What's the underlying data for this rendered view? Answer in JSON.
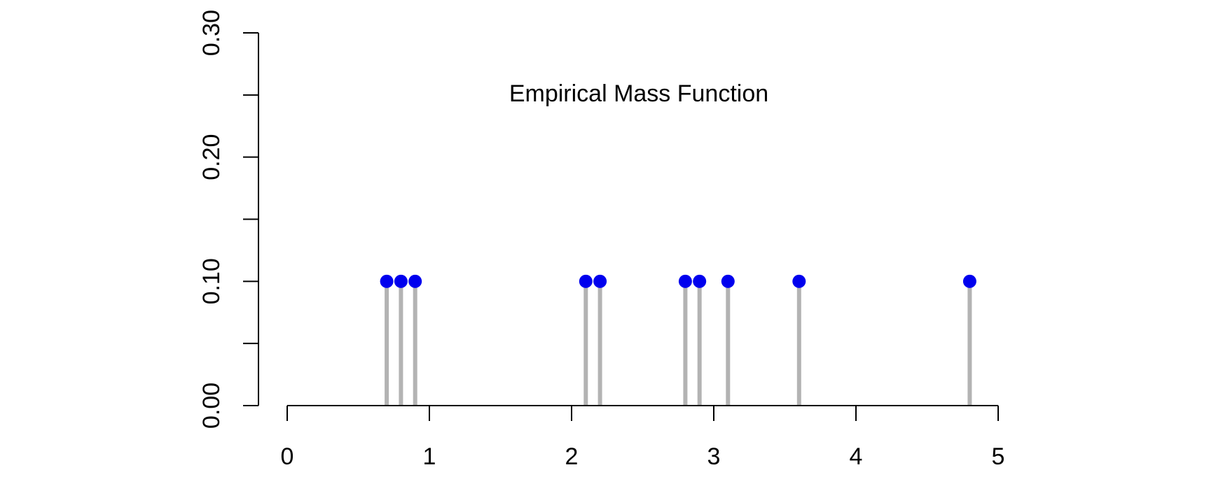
{
  "chart_data": {
    "type": "scatter",
    "title": "Empirical Mass Function",
    "xlabel": "",
    "ylabel": "",
    "xlim": [
      0,
      5
    ],
    "ylim": [
      0,
      0.3
    ],
    "x_ticks": [
      0,
      1,
      2,
      3,
      4,
      5
    ],
    "x_tick_labels": [
      "0",
      "1",
      "2",
      "3",
      "4",
      "5"
    ],
    "y_ticks": [
      0,
      0.05,
      0.1,
      0.15,
      0.2,
      0.25,
      0.3
    ],
    "y_tick_labels": [
      "0.00",
      "",
      "0.10",
      "",
      "0.20",
      "",
      "0.30"
    ],
    "grid": false,
    "series": [
      {
        "x": [
          0.7,
          0.8,
          0.9,
          2.1,
          2.2,
          2.8,
          2.9,
          3.1,
          3.6,
          4.8
        ],
        "y": [
          0.1,
          0.1,
          0.1,
          0.1,
          0.1,
          0.1,
          0.1,
          0.1,
          0.1,
          0.1
        ],
        "style": "stems with points"
      }
    ],
    "colors": {
      "point": "#0000ee",
      "stem": "#b3b3b3",
      "axis": "#000000"
    }
  }
}
